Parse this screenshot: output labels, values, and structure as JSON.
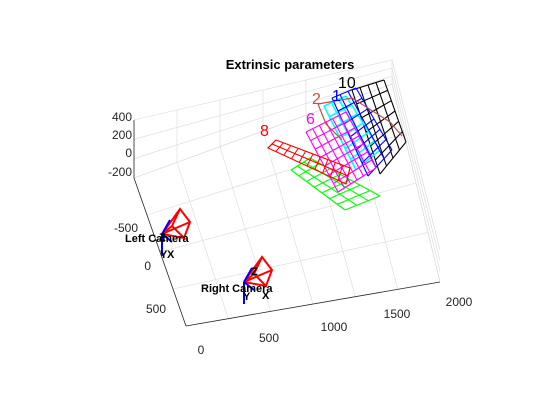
{
  "chart_data": {
    "type": "3d-scatter",
    "title": "Extrinsic parameters",
    "axes": {
      "x": {
        "ticks": [
          500,
          1000,
          1500,
          2000
        ]
      },
      "y": {
        "ticks": [
          -500,
          0,
          500
        ]
      },
      "z": {
        "ticks": [
          400,
          200,
          0,
          -200
        ]
      },
      "bottom_left_tick": "0",
      "grid": true,
      "box": "3d"
    },
    "cameras": [
      {
        "name": "Left Camera",
        "color": "#ff0000"
      },
      {
        "name": "Right Camera",
        "color": "#ff0000"
      }
    ],
    "camera_axis_letters": [
      "Z",
      "Y",
      "X"
    ],
    "boards": [
      {
        "label": "10",
        "color": "#000000"
      },
      {
        "label": "1",
        "color": "#0000ff"
      },
      {
        "label": "2",
        "color": "#c0504d"
      },
      {
        "label": "6",
        "color": "#ff00ff"
      },
      {
        "label": "8",
        "color": "#ff0000"
      },
      {
        "label": "",
        "color": "#00ffff"
      },
      {
        "label": "",
        "color": "#00ff00"
      }
    ]
  }
}
